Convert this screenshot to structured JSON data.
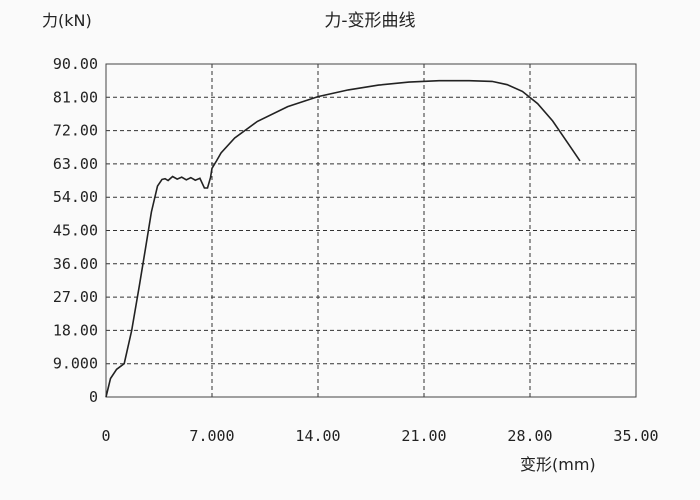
{
  "chart_data": {
    "type": "line",
    "title": "力-变形曲线",
    "ylabel": "力(kN)",
    "xlabel": "变形(mm)",
    "xlim": [
      0,
      35
    ],
    "ylim": [
      0,
      90
    ],
    "grid": true,
    "x_ticks": [
      "0",
      "7.000",
      "14.00",
      "21.00",
      "28.00",
      "35.00"
    ],
    "y_ticks": [
      "0",
      "9.000",
      "18.00",
      "27.00",
      "36.00",
      "45.00",
      "54.00",
      "63.00",
      "72.00",
      "81.00",
      "90.00"
    ],
    "colors": {
      "line": "#222222",
      "grid": "#333333",
      "frame": "#444444"
    },
    "series": [
      {
        "x": [
          0,
          0.3,
          0.7,
          1.2,
          1.7,
          2.2,
          2.6,
          3.0,
          3.4,
          3.7,
          3.9,
          4.1,
          4.4,
          4.7,
          5.0,
          5.3,
          5.6,
          5.9,
          6.2,
          6.5,
          6.7,
          6.9,
          7.0,
          7.3,
          7.6,
          8.5,
          10,
          12,
          14,
          16,
          18,
          20,
          22,
          24,
          25.5,
          26.5,
          27.5,
          28.5,
          29.5,
          30.5,
          31.3
        ],
        "y": [
          0,
          5.0,
          7.5,
          9.0,
          18,
          30,
          40,
          50,
          57,
          58.8,
          59.0,
          58.5,
          59.6,
          58.9,
          59.4,
          58.7,
          59.3,
          58.6,
          59.1,
          56.5,
          56.5,
          59.3,
          61.8,
          63.8,
          66.0,
          70.0,
          74.5,
          78.5,
          81.2,
          83.0,
          84.3,
          85.1,
          85.5,
          85.5,
          85.3,
          84.4,
          82.6,
          79.3,
          74.6,
          68.6,
          63.8
        ]
      }
    ]
  }
}
